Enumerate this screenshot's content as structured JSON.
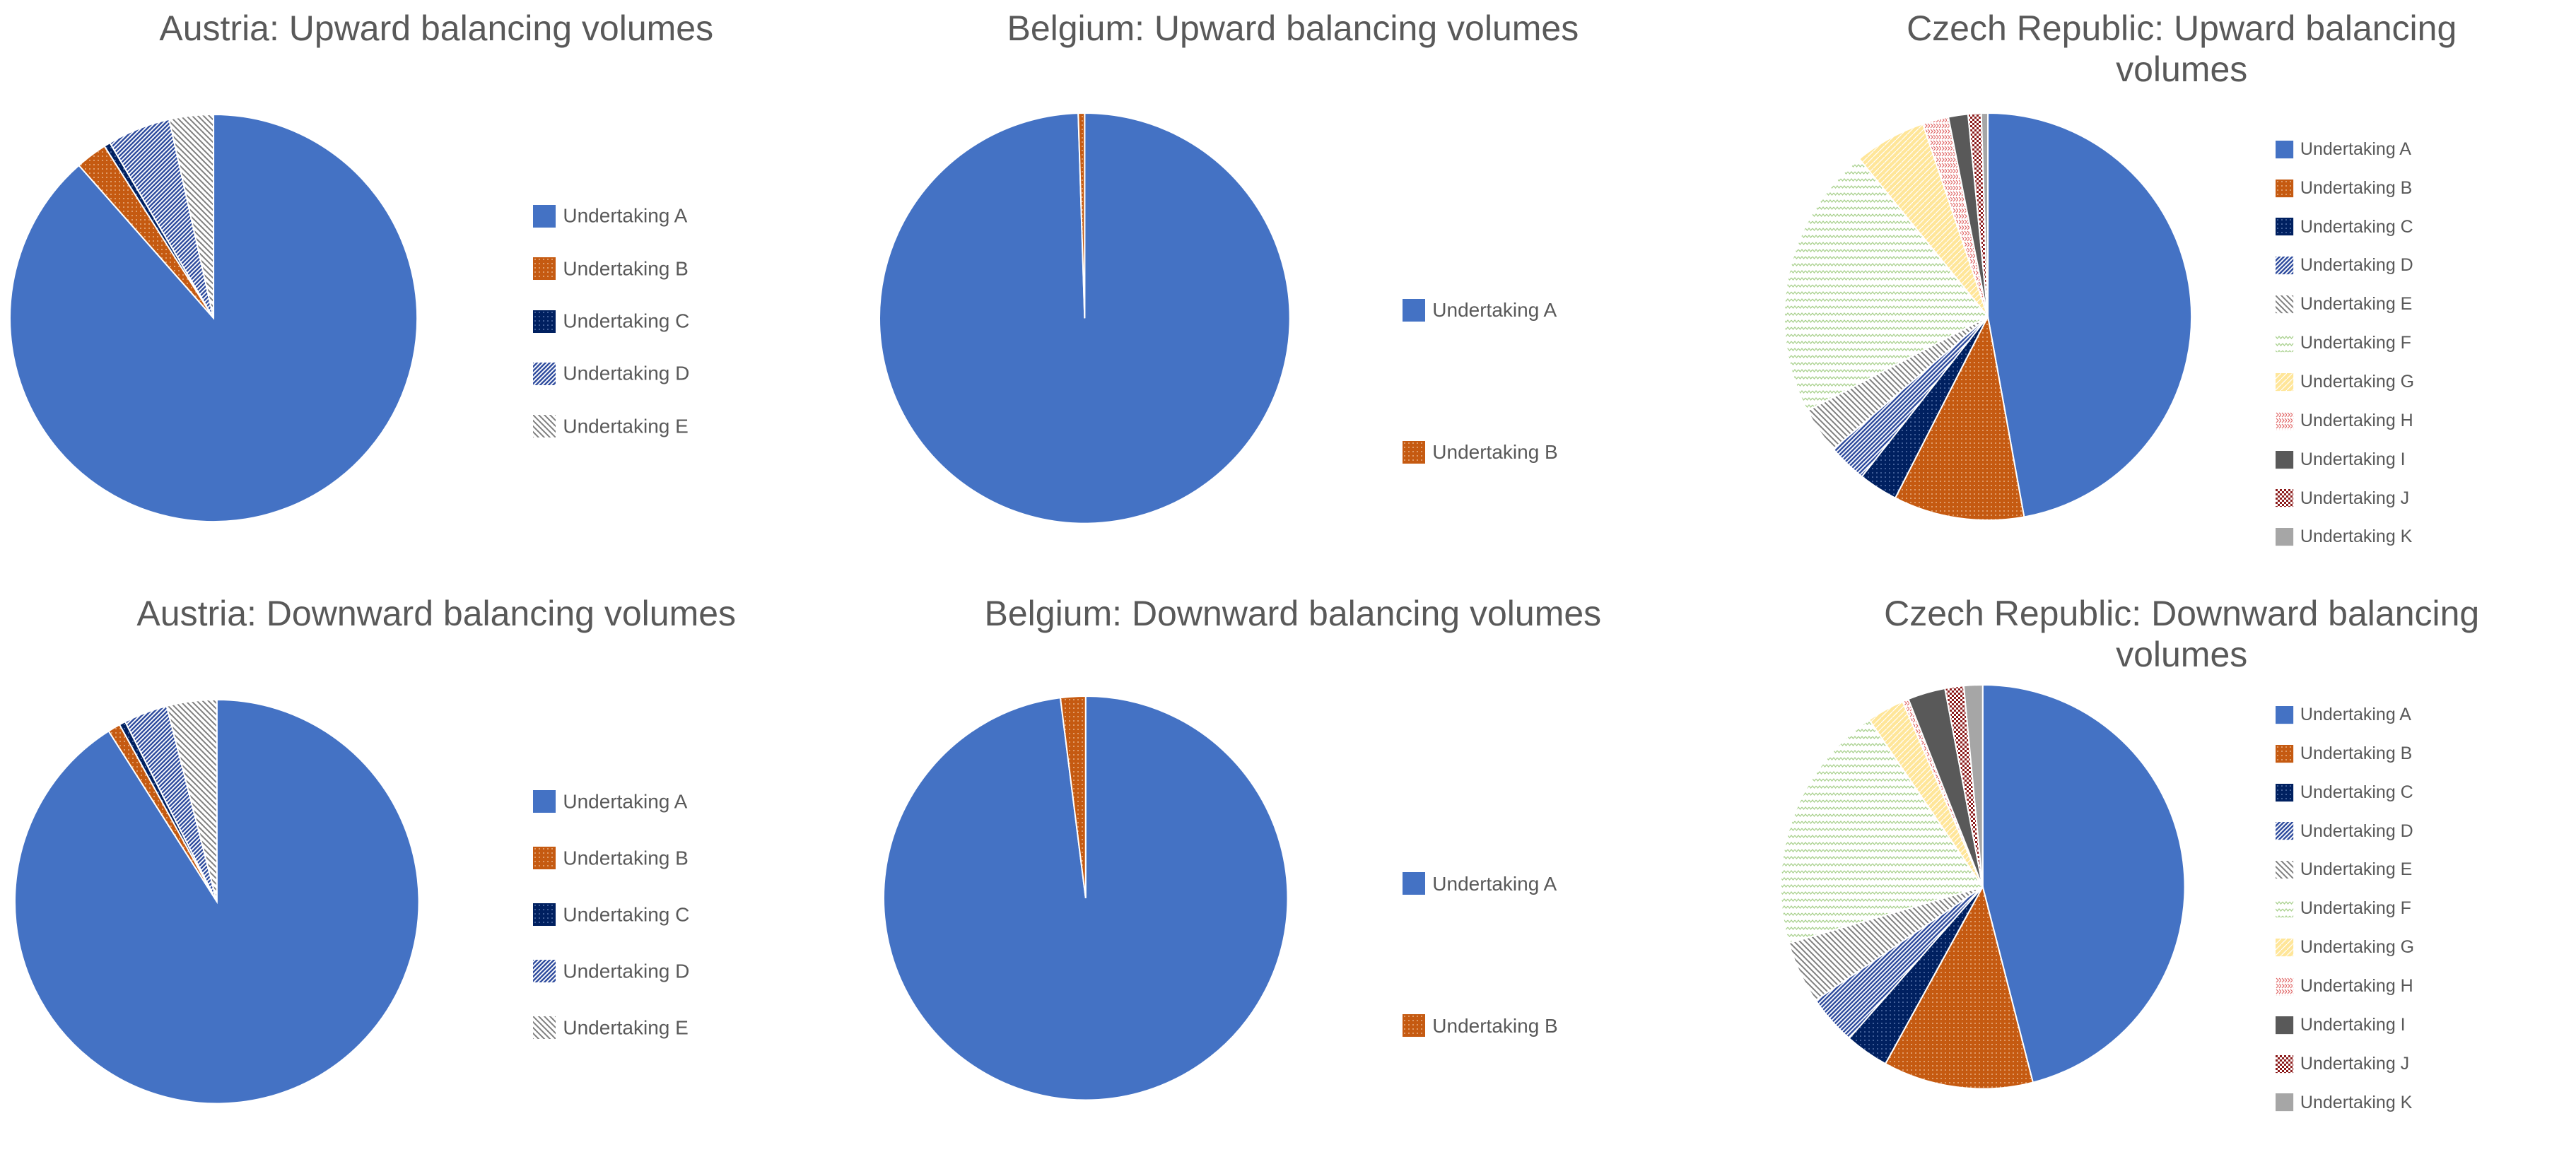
{
  "colors": {
    "A": "#4472C4",
    "B": "#C55A11",
    "C": "#002060",
    "D": "#2F4C9E",
    "E": "#7F7F7F",
    "F": "#A9D18E",
    "G": "#FFD966",
    "H": "#E06666",
    "I": "#595959",
    "J": "#8B1A1A",
    "K": "#A6A6A6"
  },
  "chart_data": [
    {
      "type": "pie",
      "title": "Austria: Upward balancing volumes",
      "legend_position": "right",
      "categories": [
        "Undertaking A",
        "Undertaking B",
        "Undertaking C",
        "Undertaking D",
        "Undertaking E"
      ],
      "values": [
        88.5,
        2.5,
        0.5,
        5.0,
        3.5
      ]
    },
    {
      "type": "pie",
      "title": "Belgium: Upward balancing volumes",
      "legend_position": "right",
      "categories": [
        "Undertaking A",
        "Undertaking B"
      ],
      "values": [
        99.5,
        0.5
      ]
    },
    {
      "type": "pie",
      "title": "Czech Republic: Upward balancing volumes",
      "legend_position": "right",
      "categories": [
        "Undertaking A",
        "Undertaking B",
        "Undertaking C",
        "Undertaking D",
        "Undertaking E",
        "Undertaking F",
        "Undertaking G",
        "Undertaking H",
        "Undertaking I",
        "Undertaking J",
        "Undertaking K"
      ],
      "values": [
        45.5,
        10.0,
        3.0,
        3.0,
        3.5,
        21.0,
        5.5,
        2.0,
        1.5,
        1.0,
        0.5
      ]
    },
    {
      "type": "pie",
      "title": "Austria: Downward balancing volumes",
      "legend_position": "right",
      "categories": [
        "Undertaking A",
        "Undertaking B",
        "Undertaking C",
        "Undertaking D",
        "Undertaking E"
      ],
      "values": [
        91.0,
        1.0,
        0.5,
        3.5,
        4.0
      ]
    },
    {
      "type": "pie",
      "title": "Belgium: Downward balancing volumes",
      "legend_position": "right",
      "categories": [
        "Undertaking A",
        "Undertaking B"
      ],
      "values": [
        98.0,
        2.0
      ]
    },
    {
      "type": "pie",
      "title": "Czech Republic: Downward balancing volumes",
      "legend_position": "right",
      "categories": [
        "Undertaking A",
        "Undertaking B",
        "Undertaking C",
        "Undertaking D",
        "Undertaking E",
        "Undertaking F",
        "Undertaking G",
        "Undertaking H",
        "Undertaking I",
        "Undertaking J",
        "Undertaking K"
      ],
      "values": [
        46.0,
        12.0,
        3.5,
        4.0,
        5.0,
        20.0,
        3.0,
        0.5,
        3.0,
        1.5,
        1.5
      ]
    }
  ]
}
